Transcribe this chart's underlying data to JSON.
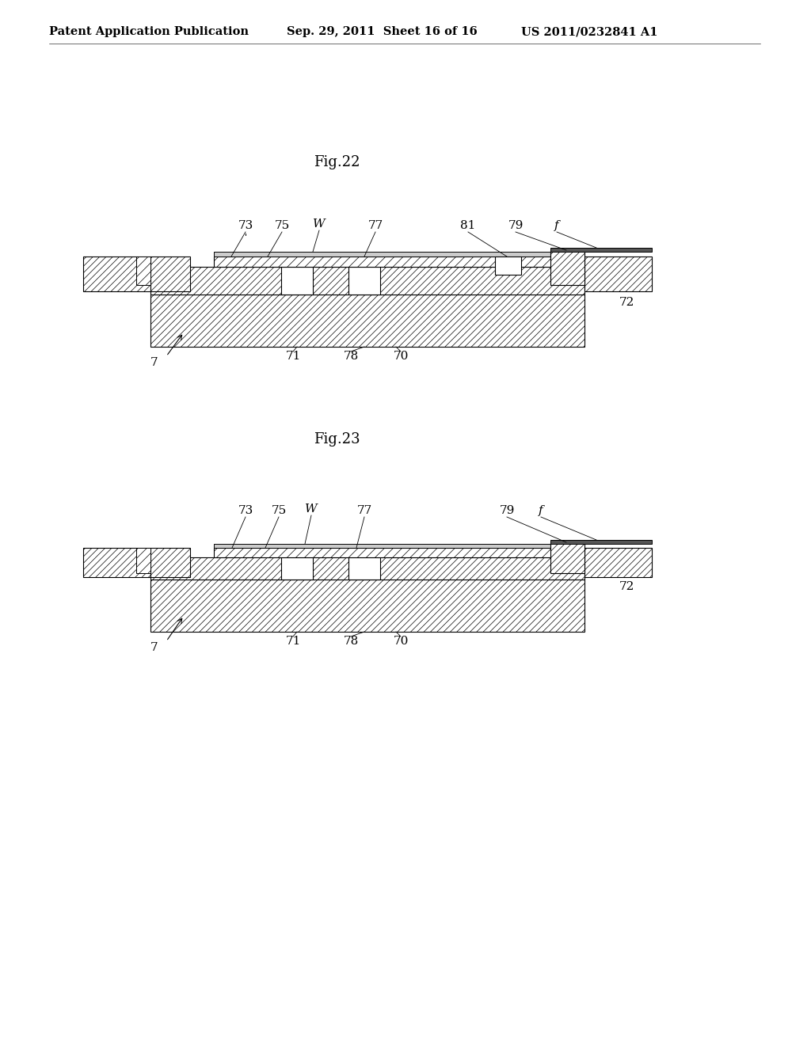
{
  "background": "#ffffff",
  "lc": "#000000",
  "header_left": "Patent Application Publication",
  "header_mid": "Sep. 29, 2011  Sheet 16 of 16",
  "header_right": "US 2011/0232841 A1",
  "fig22_label": "Fig.22",
  "fig23_label": "Fig.23",
  "header_fs": 10.5,
  "fig_label_fs": 13,
  "label_fs": 11
}
